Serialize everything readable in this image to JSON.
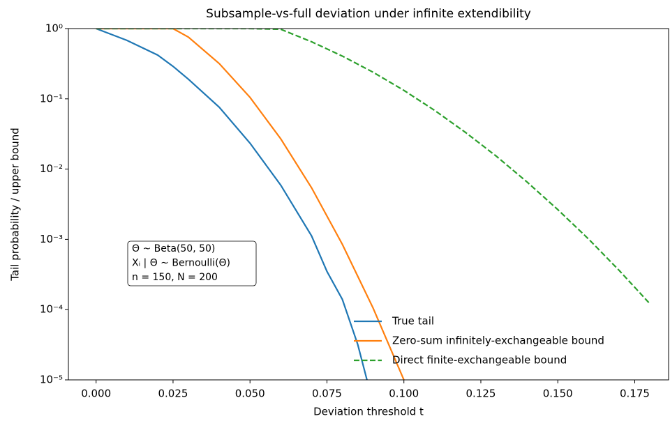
{
  "chart_data": {
    "type": "line",
    "title": "Subsample-vs-full deviation under infinite extendibility",
    "xlabel": "Deviation threshold t",
    "ylabel": "Tail probability / upper bound",
    "yscale": "log",
    "xlim": [
      -0.009,
      0.186
    ],
    "ylim": [
      1e-05,
      1
    ],
    "xticks": [
      {
        "value": 0,
        "label": "0.000"
      },
      {
        "value": 0.025,
        "label": "0.025"
      },
      {
        "value": 0.05,
        "label": "0.050"
      },
      {
        "value": 0.075,
        "label": "0.075"
      },
      {
        "value": 0.1,
        "label": "0.100"
      },
      {
        "value": 0.125,
        "label": "0.125"
      },
      {
        "value": 0.15,
        "label": "0.150"
      },
      {
        "value": 0.175,
        "label": "0.175"
      }
    ],
    "yticks": [
      {
        "value": 1,
        "label": "10⁰"
      },
      {
        "value": 0.1,
        "label": "10⁻¹"
      },
      {
        "value": 0.01,
        "label": "10⁻²"
      },
      {
        "value": 0.001,
        "label": "10⁻³"
      },
      {
        "value": 0.0001,
        "label": "10⁻⁴"
      },
      {
        "value": 1e-05,
        "label": "10⁻⁵"
      }
    ],
    "legend_position": "lower right",
    "annotation": [
      "Θ ~ Beta(50, 50)",
      "Xᵢ | Θ ~ Bernoulli(Θ)",
      "n = 150, N = 200"
    ],
    "series": [
      {
        "name": "True tail",
        "color": "#1f77b4",
        "linestyle": "solid",
        "x": [
          0,
          0.01,
          0.02,
          0.025,
          0.03,
          0.04,
          0.05,
          0.06,
          0.07,
          0.075,
          0.08,
          0.085,
          0.088
        ],
        "values": [
          1,
          0.68,
          0.42,
          0.29,
          0.19,
          0.076,
          0.0234,
          0.0059,
          0.00112,
          0.00035,
          0.00014,
          3.2e-05,
          1e-05
        ]
      },
      {
        "name": "Zero-sum infinitely-exchangeable bound",
        "color": "#ff7f0e",
        "linestyle": "solid",
        "x": [
          0,
          0.01,
          0.02,
          0.025,
          0.03,
          0.04,
          0.05,
          0.06,
          0.07,
          0.08,
          0.09,
          0.1
        ],
        "values": [
          1,
          1,
          1,
          1,
          0.755,
          0.318,
          0.105,
          0.0269,
          0.00542,
          0.00085,
          0.000105,
          1e-05
        ]
      },
      {
        "name": "Direct finite-exchangeable bound",
        "color": "#2ca02c",
        "linestyle": "dashed",
        "x": [
          0,
          0.01,
          0.02,
          0.03,
          0.04,
          0.05,
          0.06,
          0.07,
          0.08,
          0.09,
          0.1,
          0.11,
          0.12,
          0.13,
          0.14,
          0.15,
          0.16,
          0.17,
          0.18
        ],
        "values": [
          1,
          1,
          1,
          1,
          1,
          1,
          0.977,
          0.649,
          0.406,
          0.239,
          0.132,
          0.0684,
          0.0333,
          0.0153,
          0.00656,
          0.00265,
          0.00101,
          0.000359,
          0.00012
        ]
      }
    ]
  }
}
